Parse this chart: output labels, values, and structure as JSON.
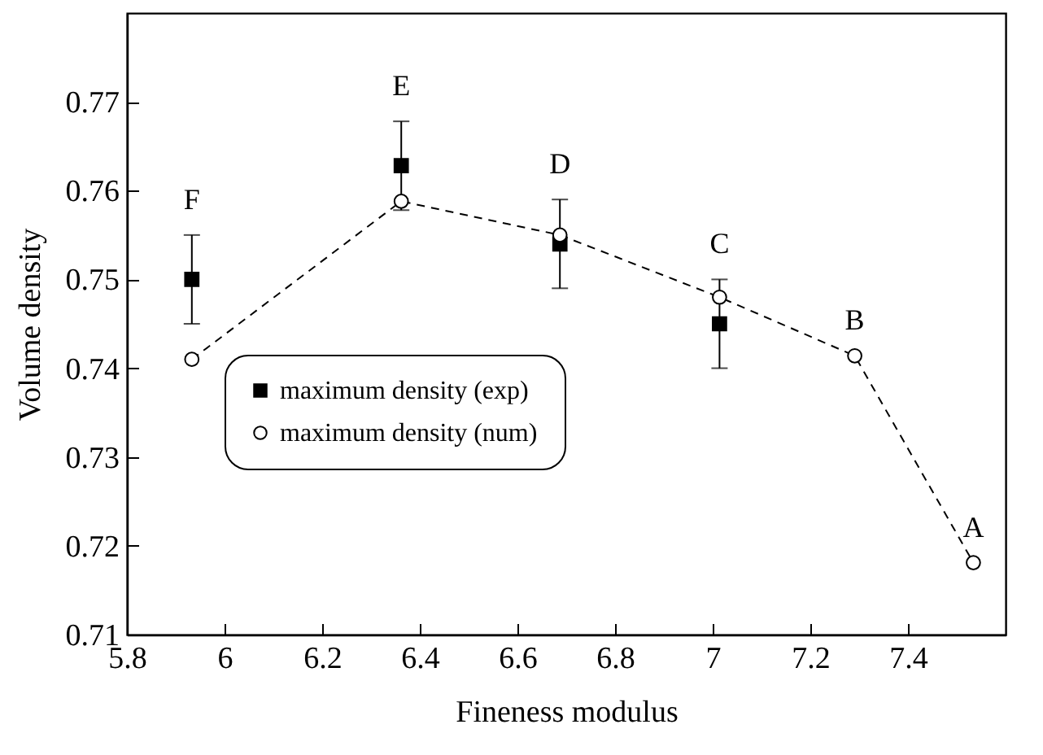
{
  "chart_data": {
    "type": "scatter",
    "xlabel": "Fineness modulus",
    "ylabel": "Volume density",
    "xlim": [
      5.8,
      7.6
    ],
    "xticks": [
      5.8,
      6,
      6.2,
      6.4,
      6.6,
      6.8,
      7,
      7.2,
      7.4
    ],
    "ylim": [
      0.71,
      0.78
    ],
    "yticks": [
      0.71,
      0.72,
      0.73,
      0.74,
      0.75,
      0.76,
      0.77
    ],
    "legend": "bottom left",
    "grid": false,
    "series": [
      {
        "name": "maximum density   (exp)",
        "type": "scatter",
        "marker": "square",
        "color": "#000000",
        "x": [
          5.933,
          6.362,
          6.687,
          7.014
        ],
        "values": [
          0.75,
          0.7628,
          0.754,
          0.745
        ],
        "errors": [
          0.005,
          0.005,
          0.005,
          0.005
        ]
      },
      {
        "name": "maximum density (num)",
        "type": "line",
        "marker": "circle",
        "line_style": "dashed",
        "color": "#000000",
        "x": [
          5.933,
          6.362,
          6.687,
          7.014,
          7.291,
          7.534
        ],
        "values": [
          0.741,
          0.7588,
          0.755,
          0.748,
          0.7414,
          0.7181
        ]
      }
    ],
    "annotations": [
      {
        "text": "F",
        "x": 5.933,
        "y": 0.755
      },
      {
        "text": "E",
        "x": 6.362,
        "y": 0.7678
      },
      {
        "text": "D",
        "x": 6.687,
        "y": 0.759
      },
      {
        "text": "C",
        "x": 7.014,
        "y": 0.75
      },
      {
        "text": "B",
        "x": 7.291,
        "y": 0.7414
      },
      {
        "text": "A",
        "x": 7.534,
        "y": 0.7181
      }
    ]
  }
}
